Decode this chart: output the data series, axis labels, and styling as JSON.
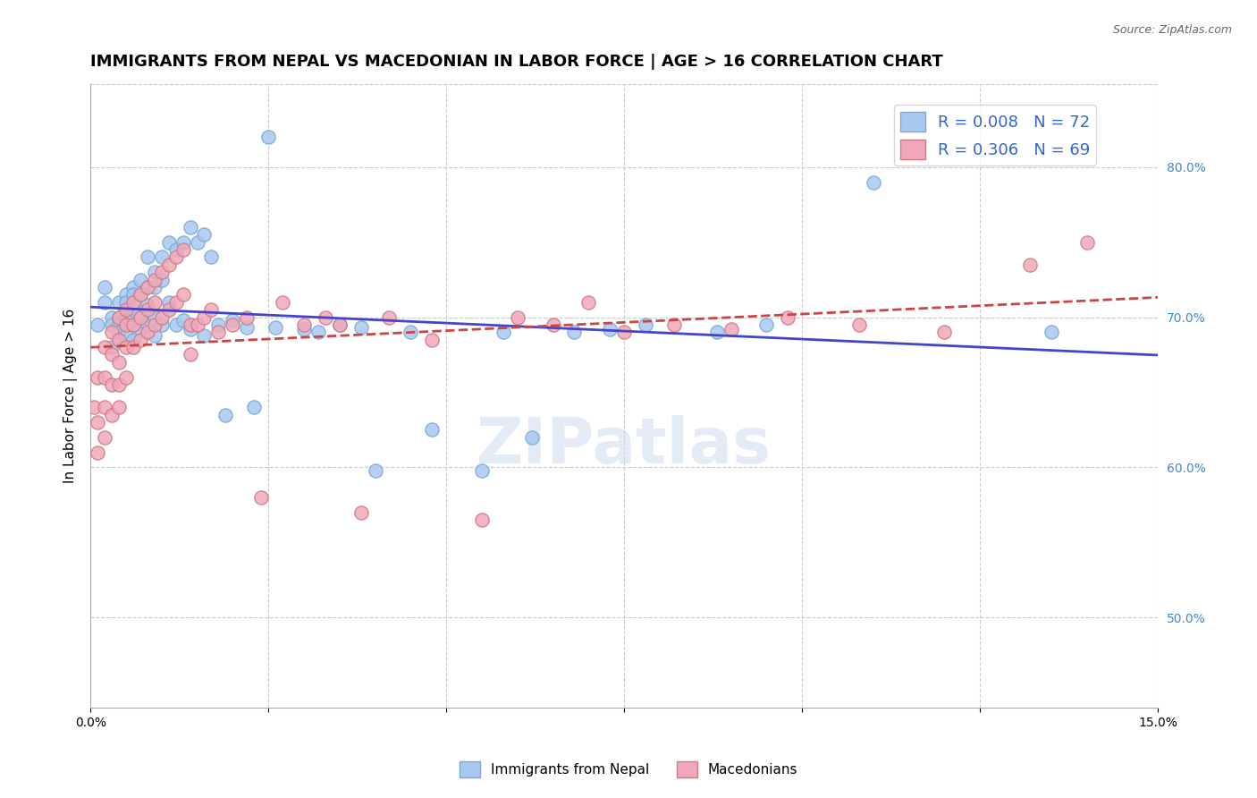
{
  "title": "IMMIGRANTS FROM NEPAL VS MACEDONIAN IN LABOR FORCE | AGE > 16 CORRELATION CHART",
  "source": "Source: ZipAtlas.com",
  "xlabel": "",
  "ylabel": "In Labor Force | Age > 16",
  "xlim": [
    0.0,
    0.15
  ],
  "ylim": [
    0.44,
    0.855
  ],
  "xticks": [
    0.0,
    0.025,
    0.05,
    0.075,
    0.1,
    0.125,
    0.15
  ],
  "xticklabels": [
    "0.0%",
    "",
    "",
    "",
    "",
    "",
    "15.0%"
  ],
  "yticks_right": [
    0.5,
    0.6,
    0.7,
    0.8
  ],
  "ytick_labels_right": [
    "50.0%",
    "60.0%",
    "70.0%",
    "80.0%"
  ],
  "nepal_R": 0.008,
  "nepal_N": 72,
  "macedonian_R": 0.306,
  "macedonian_N": 69,
  "nepal_color": "#a8c8f0",
  "nepal_edge_color": "#7aaad0",
  "macedonian_color": "#f0a8b8",
  "macedonian_edge_color": "#d07888",
  "nepal_trend_color": "#4444cc",
  "macedonian_trend_color": "#cc4444",
  "watermark": "ZIPatlas",
  "watermark_color": "#c8d8f0",
  "nepal_x": [
    0.001,
    0.002,
    0.002,
    0.003,
    0.003,
    0.003,
    0.004,
    0.004,
    0.004,
    0.004,
    0.004,
    0.005,
    0.005,
    0.005,
    0.005,
    0.005,
    0.006,
    0.006,
    0.006,
    0.006,
    0.006,
    0.007,
    0.007,
    0.007,
    0.007,
    0.008,
    0.008,
    0.008,
    0.008,
    0.009,
    0.009,
    0.009,
    0.009,
    0.01,
    0.01,
    0.01,
    0.011,
    0.011,
    0.012,
    0.012,
    0.013,
    0.013,
    0.014,
    0.014,
    0.015,
    0.016,
    0.016,
    0.017,
    0.018,
    0.019,
    0.02,
    0.022,
    0.023,
    0.025,
    0.026,
    0.03,
    0.032,
    0.035,
    0.038,
    0.04,
    0.045,
    0.048,
    0.055,
    0.058,
    0.062,
    0.068,
    0.073,
    0.078,
    0.088,
    0.095,
    0.11,
    0.135
  ],
  "nepal_y": [
    0.695,
    0.72,
    0.71,
    0.68,
    0.7,
    0.695,
    0.71,
    0.7,
    0.695,
    0.69,
    0.685,
    0.715,
    0.71,
    0.7,
    0.695,
    0.688,
    0.72,
    0.715,
    0.705,
    0.695,
    0.685,
    0.725,
    0.715,
    0.7,
    0.692,
    0.74,
    0.72,
    0.708,
    0.695,
    0.73,
    0.72,
    0.7,
    0.688,
    0.74,
    0.725,
    0.695,
    0.75,
    0.71,
    0.745,
    0.695,
    0.75,
    0.698,
    0.76,
    0.692,
    0.75,
    0.755,
    0.688,
    0.74,
    0.695,
    0.635,
    0.698,
    0.693,
    0.64,
    0.82,
    0.693,
    0.692,
    0.69,
    0.695,
    0.693,
    0.598,
    0.69,
    0.625,
    0.598,
    0.69,
    0.62,
    0.69,
    0.692,
    0.695,
    0.69,
    0.695,
    0.79,
    0.69
  ],
  "macedonian_x": [
    0.0005,
    0.001,
    0.001,
    0.001,
    0.002,
    0.002,
    0.002,
    0.002,
    0.003,
    0.003,
    0.003,
    0.003,
    0.004,
    0.004,
    0.004,
    0.004,
    0.004,
    0.005,
    0.005,
    0.005,
    0.005,
    0.006,
    0.006,
    0.006,
    0.007,
    0.007,
    0.007,
    0.008,
    0.008,
    0.008,
    0.009,
    0.009,
    0.009,
    0.01,
    0.01,
    0.011,
    0.011,
    0.012,
    0.012,
    0.013,
    0.013,
    0.014,
    0.014,
    0.015,
    0.016,
    0.017,
    0.018,
    0.02,
    0.022,
    0.024,
    0.027,
    0.03,
    0.033,
    0.035,
    0.038,
    0.042,
    0.048,
    0.055,
    0.06,
    0.065,
    0.07,
    0.075,
    0.082,
    0.09,
    0.098,
    0.108,
    0.12,
    0.132,
    0.14
  ],
  "macedonian_y": [
    0.64,
    0.66,
    0.63,
    0.61,
    0.68,
    0.66,
    0.64,
    0.62,
    0.69,
    0.675,
    0.655,
    0.635,
    0.7,
    0.685,
    0.67,
    0.655,
    0.64,
    0.705,
    0.695,
    0.68,
    0.66,
    0.71,
    0.695,
    0.68,
    0.715,
    0.7,
    0.685,
    0.72,
    0.705,
    0.69,
    0.725,
    0.71,
    0.695,
    0.73,
    0.7,
    0.735,
    0.705,
    0.74,
    0.71,
    0.745,
    0.715,
    0.695,
    0.675,
    0.695,
    0.7,
    0.705,
    0.69,
    0.695,
    0.7,
    0.58,
    0.71,
    0.695,
    0.7,
    0.695,
    0.57,
    0.7,
    0.685,
    0.565,
    0.7,
    0.695,
    0.71,
    0.69,
    0.695,
    0.692,
    0.7,
    0.695,
    0.69,
    0.735,
    0.75
  ],
  "title_fontsize": 13,
  "axis_label_fontsize": 11,
  "tick_fontsize": 10,
  "legend_fontsize": 13,
  "right_tick_color": "#4488cc",
  "grid_color": "#cccccc",
  "fig_bg": "#ffffff",
  "plot_bg": "#ffffff"
}
